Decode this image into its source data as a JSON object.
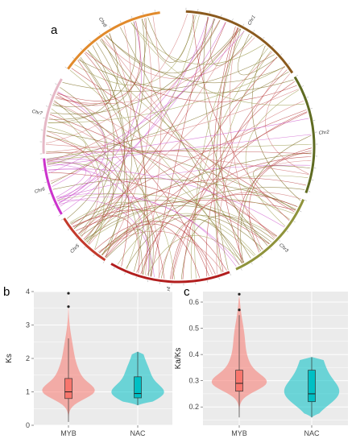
{
  "panel_a": {
    "letter": "a",
    "chromosomes": [
      {
        "name": "Chr1",
        "color": "#8a5a1e"
      },
      {
        "name": "Chr2",
        "color": "#5f6b22"
      },
      {
        "name": "Chr3",
        "color": "#8f933b"
      },
      {
        "name": "Chr4",
        "color": "#b21e1e"
      },
      {
        "name": "Chr5",
        "color": "#c33a2c"
      },
      {
        "name": "Chr6",
        "color": "#cc33cc"
      },
      {
        "name": "Chr7",
        "color": "#e5b8c6"
      },
      {
        "name": "Chr8",
        "color": "#e18a2c"
      }
    ],
    "link_colors": [
      "#7a6a1e",
      "#9a9a4a",
      "#b23030",
      "#d07070",
      "#cc55cc"
    ]
  },
  "panel_b": {
    "letter": "b",
    "chart_data": {
      "type": "violin",
      "ylabel": "Ks",
      "categories": [
        "MYB",
        "NAC"
      ],
      "ylim": [
        0,
        4
      ],
      "yticks": [
        "0",
        "1",
        "2",
        "3",
        "4"
      ],
      "colors": [
        "#f8766d",
        "#00bfc4"
      ],
      "series": [
        {
          "name": "MYB",
          "min": 0.1,
          "q1": 0.8,
          "median": 1.0,
          "q3": 1.4,
          "max": 2.6,
          "outliers": [
            3.55,
            3.95
          ]
        },
        {
          "name": "NAC",
          "min": 0.6,
          "q1": 0.82,
          "median": 0.95,
          "q3": 1.45,
          "max": 2.2,
          "outliers": []
        }
      ]
    }
  },
  "panel_c": {
    "letter": "c",
    "chart_data": {
      "type": "violin",
      "ylabel": "Ka/Ks",
      "categories": [
        "MYB",
        "NAC"
      ],
      "ylim": [
        0.13,
        0.64
      ],
      "yticks": [
        "0.2",
        "0.3",
        "0.4",
        "0.5",
        "0.6"
      ],
      "colors": [
        "#f8766d",
        "#00bfc4"
      ],
      "series": [
        {
          "name": "MYB",
          "min": 0.16,
          "q1": 0.26,
          "median": 0.29,
          "q3": 0.34,
          "max": 0.55,
          "outliers": [
            0.57,
            0.63
          ]
        },
        {
          "name": "NAC",
          "min": 0.16,
          "q1": 0.22,
          "median": 0.25,
          "q3": 0.34,
          "max": 0.39,
          "outliers": []
        }
      ]
    }
  }
}
